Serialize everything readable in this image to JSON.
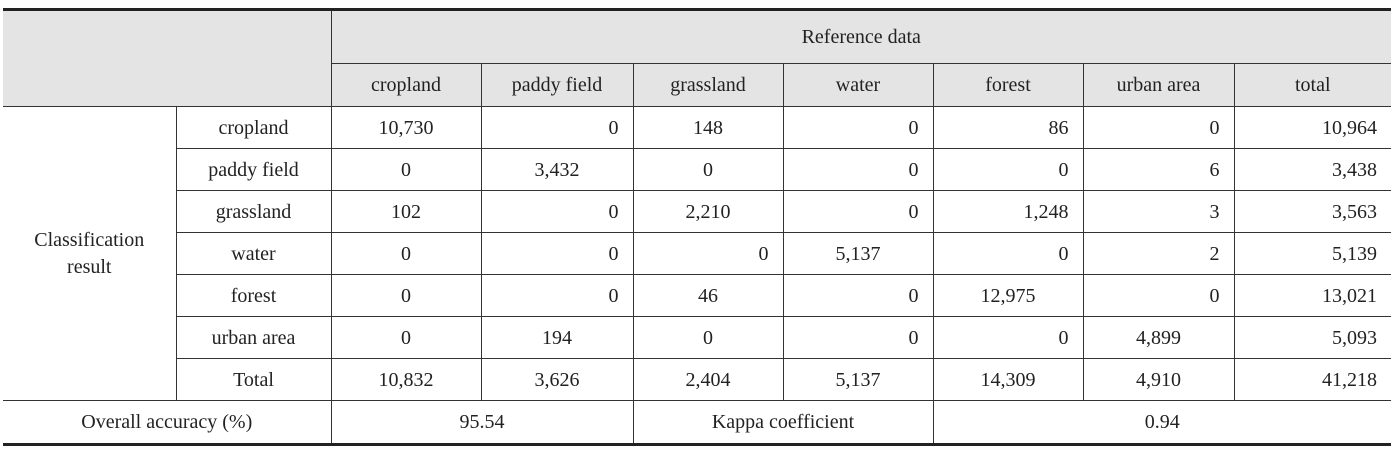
{
  "table": {
    "reference_label": "Reference data",
    "columns": [
      "cropland",
      "paddy field",
      "grassland",
      "water",
      "forest",
      "urban area",
      "total"
    ],
    "classification_label": "Classification result",
    "rows": [
      {
        "label": "cropland",
        "values": [
          "10,730",
          "0",
          "148",
          "0",
          "86",
          "0",
          "10,964"
        ]
      },
      {
        "label": "paddy field",
        "values": [
          "0",
          "3,432",
          "0",
          "0",
          "0",
          "6",
          "3,438"
        ]
      },
      {
        "label": "grassland",
        "values": [
          "102",
          "0",
          "2,210",
          "0",
          "1,248",
          "3",
          "3,563"
        ]
      },
      {
        "label": "water",
        "values": [
          "0",
          "0",
          "0",
          "5,137",
          "0",
          "2",
          "5,139"
        ]
      },
      {
        "label": "forest",
        "values": [
          "0",
          "0",
          "46",
          "0",
          "12,975",
          "0",
          "13,021"
        ]
      },
      {
        "label": "urban area",
        "values": [
          "0",
          "194",
          "0",
          "0",
          "0",
          "4,899",
          "5,093"
        ]
      },
      {
        "label": "Total",
        "values": [
          "10,832",
          "3,626",
          "2,404",
          "5,137",
          "14,309",
          "4,910",
          "41,218"
        ]
      }
    ],
    "footer": {
      "overall_label": "Overall accuracy (%)",
      "overall_value": "95.54",
      "kappa_label": "Kappa coefficient",
      "kappa_value": "0.94"
    }
  }
}
